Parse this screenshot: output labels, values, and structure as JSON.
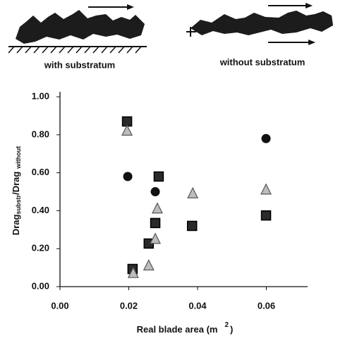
{
  "illustration": {
    "captions": [
      "with substratum",
      "without substratum"
    ]
  },
  "chart_data": {
    "type": "scatter",
    "ylabel": [
      "Drag",
      "substr",
      "/Drag",
      "without"
    ],
    "xlabel": [
      "Real blade area (m",
      "2",
      ")"
    ],
    "xlim": [
      0,
      0.072
    ],
    "ylim": [
      0,
      1.03
    ],
    "xticks": [
      {
        "value": 0,
        "label": "0.00"
      },
      0.02,
      0.04,
      0.06
    ],
    "yticks": [
      {
        "value": 0,
        "label": "0.00"
      },
      {
        "value": 0.2,
        "label": "0.20"
      },
      {
        "value": 0.4,
        "label": "0.40"
      },
      {
        "value": 0.6,
        "label": "0.60"
      },
      {
        "value": 0.8,
        "label": "0.80"
      },
      {
        "value": 1,
        "label": "1.00"
      }
    ],
    "grid": false,
    "series": [
      {
        "marker": "circle",
        "color": "#111111",
        "x": [
          0.0197,
          0.0277,
          0.0599
        ],
        "values": [
          0.58,
          0.5,
          0.78
        ]
      },
      {
        "marker": "square",
        "color": "#2a2a2a",
        "x": [
          0.0195,
          0.0287,
          0.0277,
          0.0258,
          0.0211,
          0.0384,
          0.0599
        ],
        "values": [
          0.87,
          0.58,
          0.335,
          0.227,
          0.093,
          0.32,
          0.375
        ]
      },
      {
        "marker": "triangle",
        "color": "#bdbdbd",
        "x": [
          0.0195,
          0.0283,
          0.0277,
          0.0258,
          0.0213,
          0.0386,
          0.0599
        ],
        "values": [
          0.82,
          0.41,
          0.25,
          0.11,
          0.07,
          0.49,
          0.51
        ]
      }
    ]
  }
}
